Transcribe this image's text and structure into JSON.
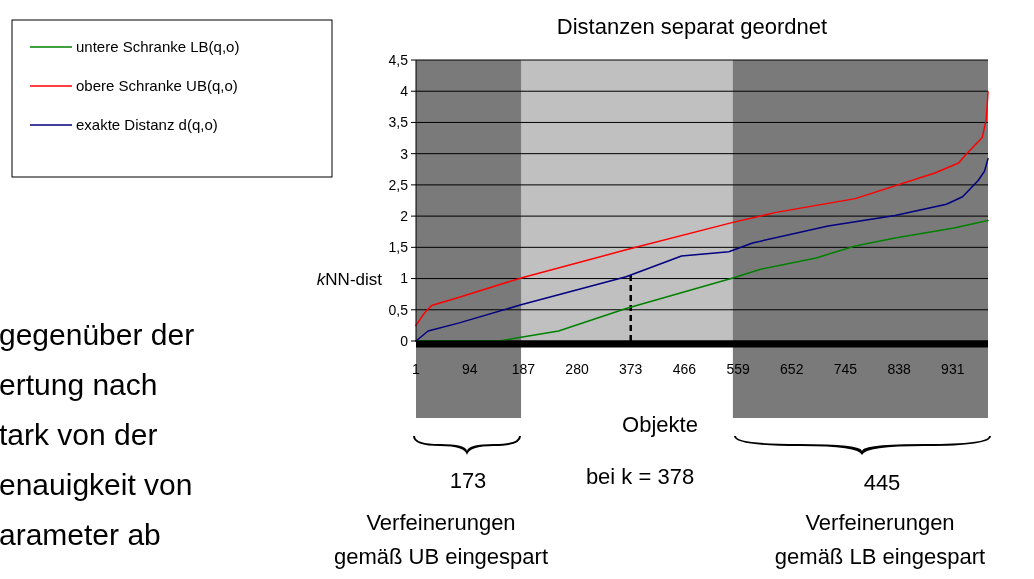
{
  "chart_data": {
    "type": "line",
    "title": "Distanzen separat geordnet",
    "xlabel": "Objekte",
    "ylabel": "kNN-dist",
    "xlim": [
      1,
      992
    ],
    "xticks": [
      1,
      94,
      187,
      280,
      373,
      466,
      559,
      652,
      745,
      838,
      931
    ],
    "ylim": [
      0,
      4.5
    ],
    "yticks": [
      0,
      {
        "value": 0.5,
        "label": "0,5"
      },
      1,
      {
        "value": 1.5,
        "label": "1,5"
      },
      2,
      {
        "value": 2.5,
        "label": "2,5"
      },
      3,
      {
        "value": 3.5,
        "label": "3,5"
      },
      4,
      {
        "value": 4.5,
        "label": "4,5"
      }
    ],
    "grid": "y",
    "legend": "top left",
    "line_style": "solid",
    "marker": "none",
    "series": [
      {
        "name": "untere Schranke LB(q,o)",
        "color": "#008000",
        "x": [
          1,
          145,
          183,
          248,
          365,
          550,
          598,
          694,
          762,
          831,
          933,
          992
        ],
        "values": [
          0,
          0,
          0.06,
          0.16,
          0.52,
          1.01,
          1.15,
          1.33,
          1.52,
          1.65,
          1.81,
          1.93
        ]
      },
      {
        "name": "obere Schranke UB(q,o)",
        "color": "#ff0000",
        "x": [
          1,
          15,
          28,
          76,
          183,
          365,
          550,
          625,
          762,
          900,
          941,
          955,
          982,
          989,
          992
        ],
        "values": [
          0.25,
          0.44,
          0.57,
          0.7,
          1.01,
          1.46,
          1.9,
          2.06,
          2.28,
          2.69,
          2.85,
          3,
          3.26,
          3.55,
          3.99
        ]
      },
      {
        "name": "exakte Distanz d(q,o)",
        "color": "#000080",
        "x": [
          1,
          22,
          76,
          183,
          365,
          461,
          543,
          584,
          715,
          831,
          920,
          948,
          975,
          986,
          992
        ],
        "values": [
          0,
          0.16,
          0.29,
          0.58,
          1.03,
          1.36,
          1.43,
          1.57,
          1.84,
          2.01,
          2.19,
          2.31,
          2.57,
          2.72,
          2.92
        ]
      }
    ],
    "bands": [
      {
        "axis": "x",
        "from": 1,
        "to": 183,
        "color": "#7a7a7a"
      },
      {
        "axis": "x",
        "from": 550,
        "to": 992,
        "color": "#7a7a7a"
      }
    ],
    "ref_lines": [
      {
        "axis": "x",
        "value": 373,
        "color": "#000000",
        "line_style": "dashed"
      }
    ],
    "annotations": [
      "173",
      "bei k = 378",
      "445",
      "Verfeinerungen",
      "gemäß UB eingespart",
      "Verfeinerungen",
      "gemäß LB eingespart",
      "gegenüber der",
      "ertung nach",
      "tark von der",
      "enauigkeit von",
      "arameter ab"
    ]
  }
}
